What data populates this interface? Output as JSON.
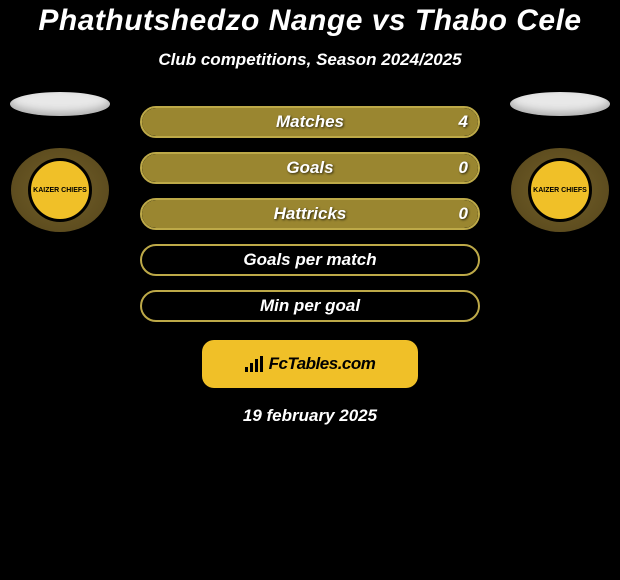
{
  "title": {
    "text": "Phathutshedzo Nange vs Thabo Cele",
    "fontsize": 30,
    "color": "#ffffff"
  },
  "subtitle": {
    "text": "Club competitions, Season 2024/2025",
    "fontsize": 17,
    "color": "#ffffff"
  },
  "players": {
    "left": {
      "club_short": "KAIZER CHIEFS"
    },
    "right": {
      "club_short": "KAIZER CHIEFS"
    }
  },
  "colors": {
    "accent": "#9a8630",
    "accent_border": "#bda948",
    "bar_fill": "#9a8630",
    "bar_empty_border": "#bda948",
    "footer_bg": "#f0c028",
    "footer_text": "#000000",
    "background": "#000000"
  },
  "bars": [
    {
      "label": "Matches",
      "left": null,
      "right": "4",
      "fill_from": "left",
      "fill_pct": 100,
      "label_fontsize": 17,
      "value_fontsize": 17
    },
    {
      "label": "Goals",
      "left": null,
      "right": "0",
      "fill_from": "left",
      "fill_pct": 100,
      "label_fontsize": 17,
      "value_fontsize": 17
    },
    {
      "label": "Hattricks",
      "left": null,
      "right": "0",
      "fill_from": "left",
      "fill_pct": 100,
      "label_fontsize": 17,
      "value_fontsize": 17
    },
    {
      "label": "Goals per match",
      "left": null,
      "right": null,
      "fill_from": "none",
      "fill_pct": 0,
      "label_fontsize": 17,
      "value_fontsize": 17
    },
    {
      "label": "Min per goal",
      "left": null,
      "right": null,
      "fill_from": "none",
      "fill_pct": 0,
      "label_fontsize": 17,
      "value_fontsize": 17
    }
  ],
  "footer": {
    "brand": "FcTables.com",
    "fontsize": 17
  },
  "date": {
    "text": "19 february 2025",
    "fontsize": 17
  }
}
